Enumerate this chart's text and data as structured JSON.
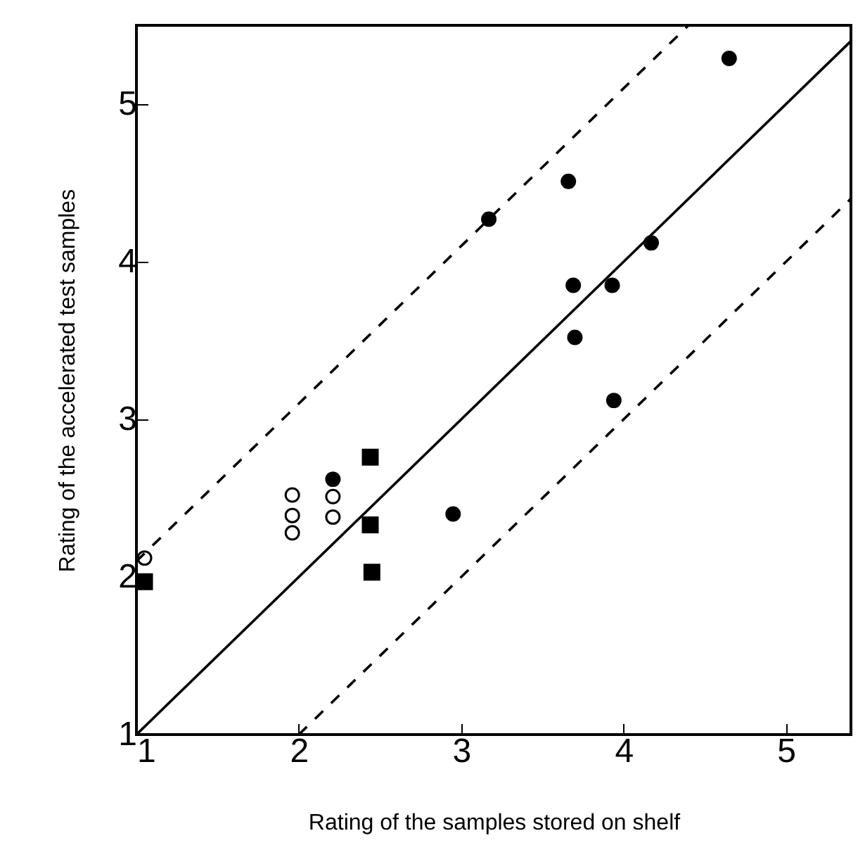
{
  "chart_data": {
    "type": "scatter",
    "xlabel": "Rating of the samples stored on shelf",
    "ylabel": "Rating of the accelerated test samples",
    "xlim": [
      1,
      5.4
    ],
    "ylim": [
      1,
      5.5
    ],
    "xticks": [
      1,
      2,
      3,
      4,
      5
    ],
    "yticks": [
      1,
      2,
      3,
      4,
      5
    ],
    "grid": false,
    "series": [
      {
        "marker": "circle",
        "color": "#000000",
        "x": [
          4.65,
          3.66,
          3.17,
          4.17,
          3.69,
          3.93,
          3.7,
          3.94,
          2.21,
          2.95
        ],
        "values": [
          5.29,
          4.51,
          4.27,
          4.12,
          3.85,
          3.85,
          3.52,
          3.12,
          2.62,
          2.4
        ]
      },
      {
        "marker": "circle",
        "color": "#ffffff",
        "x": [
          1.05,
          1.96,
          1.96,
          1.96,
          2.21,
          2.21
        ],
        "values": [
          2.12,
          2.52,
          2.39,
          2.28,
          2.51,
          2.38
        ]
      },
      {
        "marker": "square",
        "color": "#000000",
        "x": [
          1.05,
          2.44,
          2.44,
          2.45
        ],
        "values": [
          1.97,
          2.76,
          2.33,
          2.03
        ]
      },
      {
        "type": "line",
        "line_style": "solid",
        "color": "#000000",
        "x": [
          1,
          5.4
        ],
        "values": [
          1,
          5.4
        ]
      },
      {
        "type": "line",
        "line_style": "dashed",
        "color": "#000000",
        "x": [
          1,
          4.4
        ],
        "values": [
          2.1,
          5.5
        ]
      },
      {
        "type": "line",
        "line_style": "dashed",
        "color": "#000000",
        "x": [
          2,
          5.4
        ],
        "values": [
          1,
          4.4
        ]
      }
    ]
  }
}
